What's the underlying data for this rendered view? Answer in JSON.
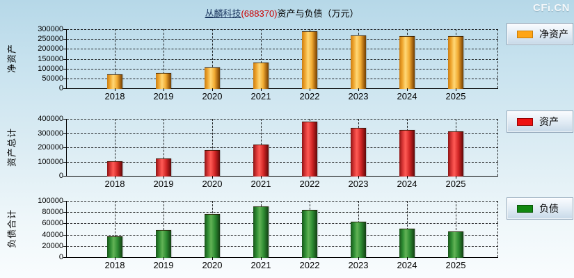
{
  "title": {
    "company": "丛麟科技",
    "code": "(688370)",
    "suffix": "资产与负债（万元）"
  },
  "watermark": "CFi.CN",
  "colors": {
    "net_assets": "#FFA515",
    "assets": "#EE1111",
    "liabilities": "#118811",
    "background_top": "#B6D8E8",
    "background_bottom": "#F9FCFE"
  },
  "chart_data": [
    {
      "type": "bar",
      "ylabel": "净资产",
      "legend": "净资产",
      "legend_position": "right",
      "grid": true,
      "categories": [
        "2018",
        "2019",
        "2020",
        "2021",
        "2022",
        "2023",
        "2024",
        "2025"
      ],
      "values": [
        70000,
        76000,
        107000,
        130000,
        288000,
        267000,
        266000,
        265000
      ],
      "ylim": [
        0,
        300000
      ],
      "yticks": [
        0,
        50000,
        100000,
        150000,
        200000,
        250000,
        300000
      ],
      "color": "orange"
    },
    {
      "type": "bar",
      "ylabel": "资产总计",
      "legend": "资产",
      "legend_position": "right",
      "grid": true,
      "categories": [
        "2018",
        "2019",
        "2020",
        "2021",
        "2022",
        "2023",
        "2024",
        "2025"
      ],
      "values": [
        101000,
        121000,
        180000,
        221000,
        380000,
        335000,
        324000,
        312000
      ],
      "ylim": [
        0,
        400000
      ],
      "yticks": [
        0,
        100000,
        200000,
        300000,
        400000
      ],
      "color": "red"
    },
    {
      "type": "bar",
      "ylabel": "负债合计",
      "legend": "负债",
      "legend_position": "right",
      "grid": true,
      "categories": [
        "2018",
        "2019",
        "2020",
        "2021",
        "2022",
        "2023",
        "2024",
        "2025"
      ],
      "values": [
        37500,
        48000,
        76000,
        90000,
        84000,
        62500,
        51000,
        46000
      ],
      "ylim": [
        0,
        100000
      ],
      "yticks": [
        0,
        20000,
        40000,
        60000,
        80000,
        100000
      ],
      "color": "green"
    }
  ]
}
